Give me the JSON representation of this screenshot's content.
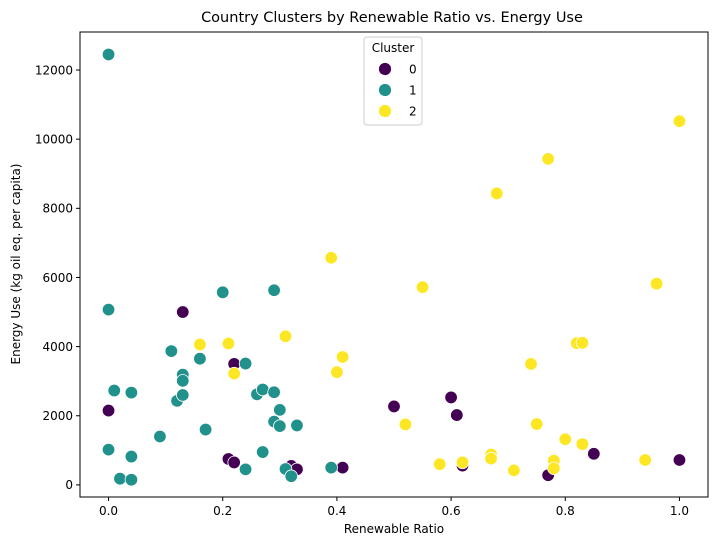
{
  "chart_data": {
    "type": "scatter",
    "title": "Country Clusters by Renewable Ratio vs. Energy Use",
    "xlabel": "Renewable Ratio",
    "ylabel": "Energy Use (kg oil eq. per capita)",
    "xlim": [
      -0.05,
      1.05
    ],
    "ylim": [
      -350,
      13100
    ],
    "xticks": [
      0.0,
      0.2,
      0.4,
      0.6,
      0.8,
      1.0
    ],
    "xtick_labels": [
      "0.0",
      "0.2",
      "0.4",
      "0.6",
      "0.8",
      "1.0"
    ],
    "yticks": [
      0,
      2000,
      4000,
      6000,
      8000,
      10000,
      12000
    ],
    "ytick_labels": [
      "0",
      "2000",
      "4000",
      "6000",
      "8000",
      "10000",
      "12000"
    ],
    "grid": false,
    "legend": {
      "title": "Cluster",
      "placement": "upper center"
    },
    "series": [
      {
        "name": "0",
        "color": "#440154",
        "points": [
          [
            0.0,
            2150
          ],
          [
            0.13,
            5000
          ],
          [
            0.22,
            3500
          ],
          [
            0.21,
            750
          ],
          [
            0.22,
            650
          ],
          [
            0.32,
            550
          ],
          [
            0.33,
            450
          ],
          [
            0.41,
            500
          ],
          [
            0.5,
            2270
          ],
          [
            0.6,
            2530
          ],
          [
            0.61,
            2020
          ],
          [
            0.62,
            560
          ],
          [
            0.77,
            280
          ],
          [
            0.85,
            900
          ],
          [
            1.0,
            720
          ]
        ]
      },
      {
        "name": "1",
        "color": "#21918c",
        "points": [
          [
            0.0,
            12450
          ],
          [
            0.0,
            5070
          ],
          [
            0.0,
            1020
          ],
          [
            0.01,
            2730
          ],
          [
            0.02,
            180
          ],
          [
            0.04,
            2670
          ],
          [
            0.04,
            820
          ],
          [
            0.04,
            150
          ],
          [
            0.09,
            1400
          ],
          [
            0.11,
            3870
          ],
          [
            0.12,
            2430
          ],
          [
            0.13,
            3190
          ],
          [
            0.13,
            2600
          ],
          [
            0.13,
            3010
          ],
          [
            0.16,
            3650
          ],
          [
            0.17,
            1600
          ],
          [
            0.2,
            5570
          ],
          [
            0.24,
            3510
          ],
          [
            0.24,
            450
          ],
          [
            0.26,
            2620
          ],
          [
            0.27,
            2760
          ],
          [
            0.27,
            950
          ],
          [
            0.29,
            5630
          ],
          [
            0.29,
            2680
          ],
          [
            0.29,
            1830
          ],
          [
            0.3,
            1700
          ],
          [
            0.3,
            2170
          ],
          [
            0.31,
            460
          ],
          [
            0.32,
            250
          ],
          [
            0.33,
            1720
          ],
          [
            0.39,
            500
          ]
        ]
      },
      {
        "name": "2",
        "color": "#fde725",
        "points": [
          [
            0.16,
            4060
          ],
          [
            0.21,
            4090
          ],
          [
            0.22,
            3220
          ],
          [
            0.31,
            4300
          ],
          [
            0.39,
            6570
          ],
          [
            0.4,
            3260
          ],
          [
            0.41,
            3700
          ],
          [
            0.52,
            1750
          ],
          [
            0.55,
            5720
          ],
          [
            0.58,
            600
          ],
          [
            0.62,
            650
          ],
          [
            0.67,
            880
          ],
          [
            0.67,
            760
          ],
          [
            0.68,
            8430
          ],
          [
            0.71,
            420
          ],
          [
            0.74,
            3500
          ],
          [
            0.75,
            1760
          ],
          [
            0.77,
            9430
          ],
          [
            0.78,
            700
          ],
          [
            0.78,
            480
          ],
          [
            0.8,
            1320
          ],
          [
            0.82,
            4100
          ],
          [
            0.83,
            4110
          ],
          [
            0.83,
            1180
          ],
          [
            0.94,
            720
          ],
          [
            0.96,
            5820
          ],
          [
            1.0,
            10520
          ]
        ]
      }
    ]
  }
}
